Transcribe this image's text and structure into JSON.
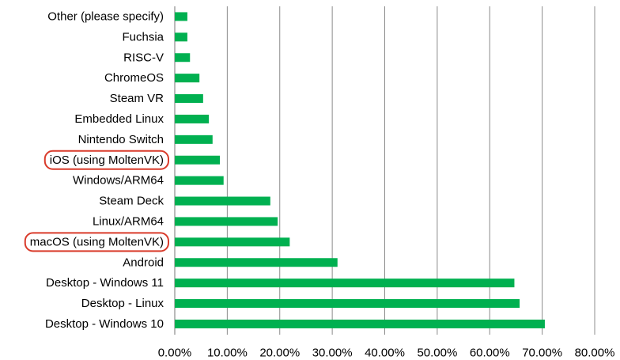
{
  "chart_data": {
    "type": "bar",
    "orientation": "horizontal",
    "title": "",
    "xlabel": "",
    "ylabel": "",
    "categories": [
      "Other (please specify)",
      "Fuchsia",
      "RISC-V",
      "ChromeOS",
      "Steam VR",
      "Embedded Linux",
      "Nintendo Switch",
      "iOS (using MoltenVK)",
      "Windows/ARM64",
      "Steam Deck",
      "Linux/ARM64",
      "macOS (using MoltenVK)",
      "Android",
      "Desktop - Windows 11",
      "Desktop - Linux",
      "Desktop - Windows 10"
    ],
    "values": [
      2.4,
      2.4,
      2.9,
      4.7,
      5.4,
      6.5,
      7.2,
      8.6,
      9.3,
      18.2,
      19.6,
      21.9,
      31.0,
      64.7,
      65.7,
      70.5
    ],
    "xlim": [
      0,
      80
    ],
    "x_ticks": [
      0,
      10,
      20,
      30,
      40,
      50,
      60,
      70,
      80
    ],
    "x_tick_labels": [
      "0.00%",
      "10.00%",
      "20.00%",
      "30.00%",
      "40.00%",
      "50.00%",
      "60.00%",
      "70.00%",
      "80.00%"
    ],
    "gridlines": "vertical",
    "legend": "none",
    "bar_color": "#00B050",
    "highlighted_categories": [
      "iOS (using MoltenVK)",
      "macOS (using MoltenVK)"
    ],
    "highlight_color": "#D93B2B"
  }
}
